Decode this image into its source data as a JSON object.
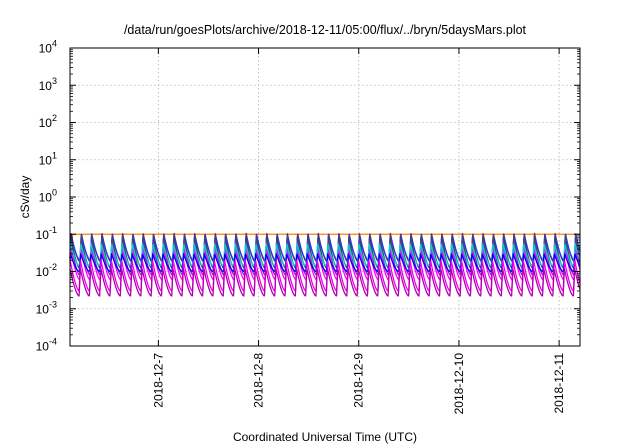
{
  "chart_data": {
    "type": "line",
    "title": "/data/run/goesPlots/archive/2018-12-11/05:00/flux/../bryn/5daysMars.plot",
    "xlabel": "Coordinated Universal Time (UTC)",
    "ylabel": "cSv/day",
    "yscale": "log",
    "ylim": [
      0.0001,
      10000
    ],
    "xlim": [
      "2018-12-06 02:50",
      "2018-12-11 05:00"
    ],
    "grid": true,
    "legend": "none",
    "y_ticks": [
      {
        "base": "10",
        "exp": "-4",
        "value": 0.0001
      },
      {
        "base": "10",
        "exp": "-3",
        "value": 0.001
      },
      {
        "base": "10",
        "exp": "-2",
        "value": 0.01
      },
      {
        "base": "10",
        "exp": "-1",
        "value": 0.1
      },
      {
        "base": "10",
        "exp": "0",
        "value": 1
      },
      {
        "base": "10",
        "exp": "1",
        "value": 10
      },
      {
        "base": "10",
        "exp": "2",
        "value": 100
      },
      {
        "base": "10",
        "exp": "3",
        "value": 1000
      },
      {
        "base": "10",
        "exp": "4",
        "value": 10000
      }
    ],
    "x_ticks": [
      {
        "label": "2018-12-7",
        "value": "2018-12-07 00:00"
      },
      {
        "label": "2018-12-8",
        "value": "2018-12-08 00:00"
      },
      {
        "label": "2018-12-9",
        "value": "2018-12-09 00:00"
      },
      {
        "label": "2018-12-10",
        "value": "2018-12-10 00:00"
      },
      {
        "label": "2018-12-11",
        "value": "2018-12-11 00:00"
      }
    ],
    "cycle_hours": 2.467,
    "series": [
      {
        "color": "#ff7f00",
        "peak": 0.1,
        "trough": 0.1
      },
      {
        "color": "#8b1a1a",
        "peak": 0.105,
        "trough": 0.018
      },
      {
        "color": "#1a3cff",
        "peak": 0.098,
        "trough": 0.02
      },
      {
        "color": "#2f4f4f",
        "peak": 0.085,
        "trough": 0.012
      },
      {
        "color": "#7a2fbf",
        "peak": 0.065,
        "trough": 0.008
      },
      {
        "color": "#ff00ff",
        "peak": 0.045,
        "trough": 0.006
      },
      {
        "color": "#00d0d0",
        "peak": 0.055,
        "trough": 0.014
      },
      {
        "color": "#0000ee",
        "peak": 0.03,
        "trough": 0.01
      },
      {
        "color": "#ee00ee",
        "peak": 0.02,
        "trough": 0.003
      },
      {
        "color": "#b000b0",
        "peak": 0.012,
        "trough": 0.0022
      }
    ]
  }
}
